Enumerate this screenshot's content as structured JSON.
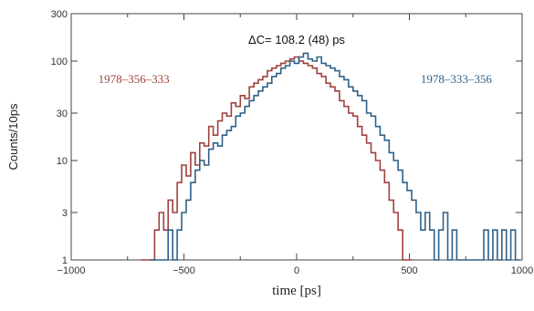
{
  "chart_data": {
    "type": "line",
    "step": true,
    "xlabel": "time [ps]",
    "ylabel": "Counts/10ps",
    "xlim": [
      -1000,
      1000
    ],
    "ylim": [
      1,
      300
    ],
    "y_scale": "log",
    "x_ticks": [
      -1000,
      -500,
      0,
      500,
      1000
    ],
    "x_tick_labels": [
      "−1000",
      "−500",
      "0",
      "500",
      "1000"
    ],
    "y_ticks": [
      1,
      3,
      10,
      30,
      100,
      300
    ],
    "y_tick_labels": [
      "1",
      "3",
      "10",
      "30",
      "100",
      "300"
    ],
    "annotation": "ΔC= 108.2 (48) ps",
    "colors": {
      "series_a": "#a0403e",
      "series_b": "#2f6088",
      "axis": "#444444"
    },
    "series": [
      {
        "name": "1978–356–333",
        "x": [
          -680,
          -660,
          -640,
          -620,
          -600,
          -580,
          -560,
          -540,
          -520,
          -500,
          -480,
          -460,
          -440,
          -420,
          -400,
          -380,
          -360,
          -340,
          -320,
          -300,
          -280,
          -260,
          -240,
          -220,
          -200,
          -180,
          -160,
          -140,
          -120,
          -100,
          -80,
          -60,
          -40,
          -20,
          0,
          20,
          40,
          60,
          80,
          100,
          120,
          140,
          160,
          180,
          200,
          220,
          240,
          260,
          280,
          300,
          320,
          340,
          360,
          380,
          400,
          420,
          440,
          460,
          480,
          500
        ],
        "y": [
          1,
          1,
          1,
          2,
          3,
          2,
          4,
          3,
          6,
          9,
          7,
          12,
          9,
          15,
          14,
          22,
          18,
          25,
          30,
          28,
          38,
          35,
          45,
          42,
          55,
          60,
          65,
          70,
          80,
          85,
          90,
          95,
          100,
          105,
          110,
          100,
          95,
          90,
          85,
          75,
          70,
          60,
          55,
          50,
          40,
          35,
          30,
          28,
          22,
          18,
          15,
          12,
          10,
          8,
          6,
          4,
          3,
          2,
          1,
          1
        ]
      },
      {
        "name": "1978–333–356",
        "x": [
          -640,
          -620,
          -600,
          -580,
          -560,
          -540,
          -520,
          -500,
          -480,
          -460,
          -440,
          -420,
          -400,
          -380,
          -360,
          -340,
          -320,
          -300,
          -280,
          -260,
          -240,
          -220,
          -200,
          -180,
          -160,
          -140,
          -120,
          -100,
          -80,
          -60,
          -40,
          -20,
          0,
          20,
          40,
          60,
          80,
          100,
          120,
          140,
          160,
          180,
          200,
          220,
          240,
          260,
          280,
          300,
          320,
          340,
          360,
          380,
          400,
          420,
          440,
          460,
          480,
          500,
          520,
          540,
          560,
          580,
          600,
          620,
          640,
          660,
          680,
          700,
          720,
          740,
          760,
          780,
          800,
          820,
          840,
          860,
          880,
          900,
          920,
          940,
          960,
          980
        ],
        "y": [
          1,
          1,
          1,
          1,
          2,
          1,
          2,
          3,
          4,
          6,
          8,
          10,
          9,
          13,
          15,
          14,
          18,
          20,
          22,
          28,
          30,
          35,
          40,
          45,
          50,
          55,
          60,
          70,
          75,
          85,
          90,
          100,
          95,
          110,
          120,
          105,
          100,
          110,
          95,
          90,
          85,
          80,
          70,
          65,
          55,
          50,
          45,
          40,
          30,
          28,
          22,
          18,
          16,
          12,
          10,
          8,
          6,
          5,
          4,
          3,
          2,
          3,
          2,
          1,
          2,
          3,
          1,
          2,
          1,
          1,
          1,
          1,
          1,
          1,
          2,
          1,
          2,
          1,
          2,
          1,
          2,
          1
        ]
      }
    ]
  }
}
